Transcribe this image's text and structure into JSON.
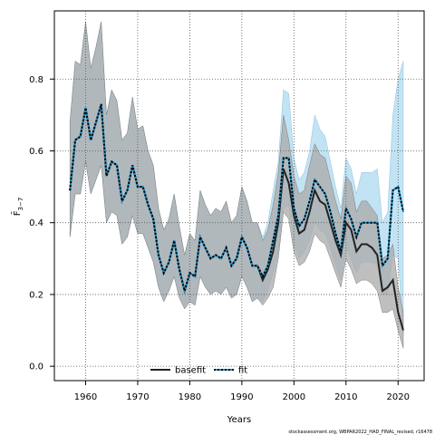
{
  "chart_data": {
    "type": "line",
    "xlabel": "Years",
    "ylabel": "F̄",
    "ylabel_sub": "3−7",
    "xlim": [
      1954,
      2025
    ],
    "ylim": [
      -0.04,
      0.99
    ],
    "x_ticks": [
      "1960",
      "1970",
      "1980",
      "1990",
      "2000",
      "2010",
      "2020"
    ],
    "y_ticks": [
      "0.0",
      "0.2",
      "0.4",
      "0.6",
      "0.8"
    ],
    "grid": true,
    "legend_position": "bottom-center",
    "footnote": "stockassessment.org, WBPAR2022_HAD_FINAL_revised, r16478",
    "years": [
      1957,
      1958,
      1959,
      1960,
      1961,
      1962,
      1963,
      1964,
      1965,
      1966,
      1967,
      1968,
      1969,
      1970,
      1971,
      1972,
      1973,
      1974,
      1975,
      1976,
      1977,
      1978,
      1979,
      1980,
      1981,
      1982,
      1983,
      1984,
      1985,
      1986,
      1987,
      1988,
      1989,
      1990,
      1991,
      1992,
      1993,
      1994,
      1995,
      1996,
      1997,
      1998,
      1999,
      2000,
      2001,
      2002,
      2003,
      2004,
      2005,
      2006,
      2007,
      2008,
      2009,
      2010,
      2011,
      2012,
      2013,
      2014,
      2015,
      2016,
      2017,
      2018,
      2019,
      2020,
      2021
    ],
    "series": [
      {
        "name": "basefit",
        "color": "#222222",
        "band_color": "#a9a9a9",
        "values": [
          0.49,
          0.63,
          0.64,
          0.72,
          0.63,
          0.68,
          0.73,
          0.53,
          0.57,
          0.56,
          0.46,
          0.49,
          0.56,
          0.5,
          0.5,
          0.45,
          0.41,
          0.31,
          0.26,
          0.29,
          0.35,
          0.27,
          0.21,
          0.26,
          0.25,
          0.36,
          0.33,
          0.3,
          0.31,
          0.3,
          0.33,
          0.28,
          0.3,
          0.36,
          0.33,
          0.28,
          0.28,
          0.24,
          0.27,
          0.32,
          0.4,
          0.55,
          0.51,
          0.42,
          0.37,
          0.38,
          0.43,
          0.49,
          0.46,
          0.45,
          0.4,
          0.35,
          0.31,
          0.4,
          0.38,
          0.32,
          0.34,
          0.34,
          0.33,
          0.31,
          0.21,
          0.22,
          0.24,
          0.15,
          0.1
        ],
        "lower": [
          0.36,
          0.48,
          0.48,
          0.57,
          0.48,
          0.52,
          0.56,
          0.4,
          0.43,
          0.42,
          0.34,
          0.36,
          0.42,
          0.37,
          0.37,
          0.33,
          0.29,
          0.22,
          0.18,
          0.21,
          0.25,
          0.19,
          0.16,
          0.18,
          0.17,
          0.25,
          0.22,
          0.2,
          0.21,
          0.2,
          0.22,
          0.19,
          0.2,
          0.25,
          0.22,
          0.18,
          0.19,
          0.17,
          0.19,
          0.22,
          0.3,
          0.43,
          0.41,
          0.32,
          0.28,
          0.29,
          0.32,
          0.37,
          0.35,
          0.34,
          0.3,
          0.26,
          0.22,
          0.3,
          0.27,
          0.23,
          0.24,
          0.24,
          0.23,
          0.21,
          0.15,
          0.15,
          0.16,
          0.1,
          0.05
        ],
        "upper": [
          0.68,
          0.85,
          0.84,
          0.96,
          0.83,
          0.89,
          0.96,
          0.7,
          0.77,
          0.74,
          0.63,
          0.65,
          0.75,
          0.66,
          0.67,
          0.6,
          0.56,
          0.44,
          0.38,
          0.41,
          0.48,
          0.39,
          0.31,
          0.37,
          0.35,
          0.49,
          0.45,
          0.42,
          0.44,
          0.43,
          0.46,
          0.4,
          0.42,
          0.5,
          0.46,
          0.4,
          0.4,
          0.35,
          0.38,
          0.45,
          0.54,
          0.7,
          0.63,
          0.53,
          0.48,
          0.49,
          0.56,
          0.62,
          0.59,
          0.58,
          0.52,
          0.46,
          0.41,
          0.53,
          0.51,
          0.43,
          0.46,
          0.46,
          0.44,
          0.42,
          0.3,
          0.31,
          0.34,
          0.22,
          0.15
        ]
      },
      {
        "name": "fit",
        "color": "#1a8fc9",
        "band_color": "#bfe1f2",
        "values": [
          0.49,
          0.63,
          0.64,
          0.72,
          0.63,
          0.68,
          0.73,
          0.53,
          0.57,
          0.56,
          0.46,
          0.49,
          0.56,
          0.5,
          0.5,
          0.45,
          0.41,
          0.31,
          0.26,
          0.29,
          0.35,
          0.27,
          0.21,
          0.26,
          0.25,
          0.36,
          0.33,
          0.3,
          0.31,
          0.3,
          0.33,
          0.28,
          0.3,
          0.36,
          0.33,
          0.28,
          0.28,
          0.25,
          0.28,
          0.35,
          0.42,
          0.58,
          0.58,
          0.44,
          0.39,
          0.41,
          0.46,
          0.52,
          0.5,
          0.48,
          0.43,
          0.37,
          0.32,
          0.44,
          0.41,
          0.36,
          0.4,
          0.4,
          0.4,
          0.4,
          0.28,
          0.3,
          0.49,
          0.5,
          0.43
        ],
        "lower": [
          0.36,
          0.48,
          0.48,
          0.57,
          0.48,
          0.52,
          0.56,
          0.4,
          0.43,
          0.42,
          0.34,
          0.36,
          0.42,
          0.37,
          0.37,
          0.33,
          0.29,
          0.22,
          0.18,
          0.21,
          0.25,
          0.19,
          0.16,
          0.18,
          0.17,
          0.25,
          0.22,
          0.2,
          0.21,
          0.2,
          0.22,
          0.19,
          0.2,
          0.25,
          0.22,
          0.18,
          0.19,
          0.18,
          0.21,
          0.26,
          0.32,
          0.44,
          0.45,
          0.34,
          0.3,
          0.32,
          0.35,
          0.4,
          0.38,
          0.37,
          0.33,
          0.28,
          0.24,
          0.33,
          0.3,
          0.26,
          0.29,
          0.29,
          0.29,
          0.28,
          0.2,
          0.2,
          0.31,
          0.3,
          0.09
        ],
        "upper": [
          0.68,
          0.85,
          0.84,
          0.96,
          0.83,
          0.89,
          0.96,
          0.7,
          0.77,
          0.74,
          0.63,
          0.65,
          0.75,
          0.66,
          0.67,
          0.6,
          0.56,
          0.44,
          0.38,
          0.41,
          0.48,
          0.39,
          0.31,
          0.37,
          0.35,
          0.49,
          0.45,
          0.42,
          0.44,
          0.43,
          0.46,
          0.4,
          0.42,
          0.5,
          0.46,
          0.4,
          0.4,
          0.36,
          0.4,
          0.49,
          0.57,
          0.77,
          0.76,
          0.58,
          0.52,
          0.54,
          0.6,
          0.7,
          0.66,
          0.64,
          0.57,
          0.5,
          0.44,
          0.58,
          0.55,
          0.48,
          0.54,
          0.54,
          0.54,
          0.55,
          0.4,
          0.43,
          0.7,
          0.8,
          0.85
        ]
      }
    ]
  }
}
